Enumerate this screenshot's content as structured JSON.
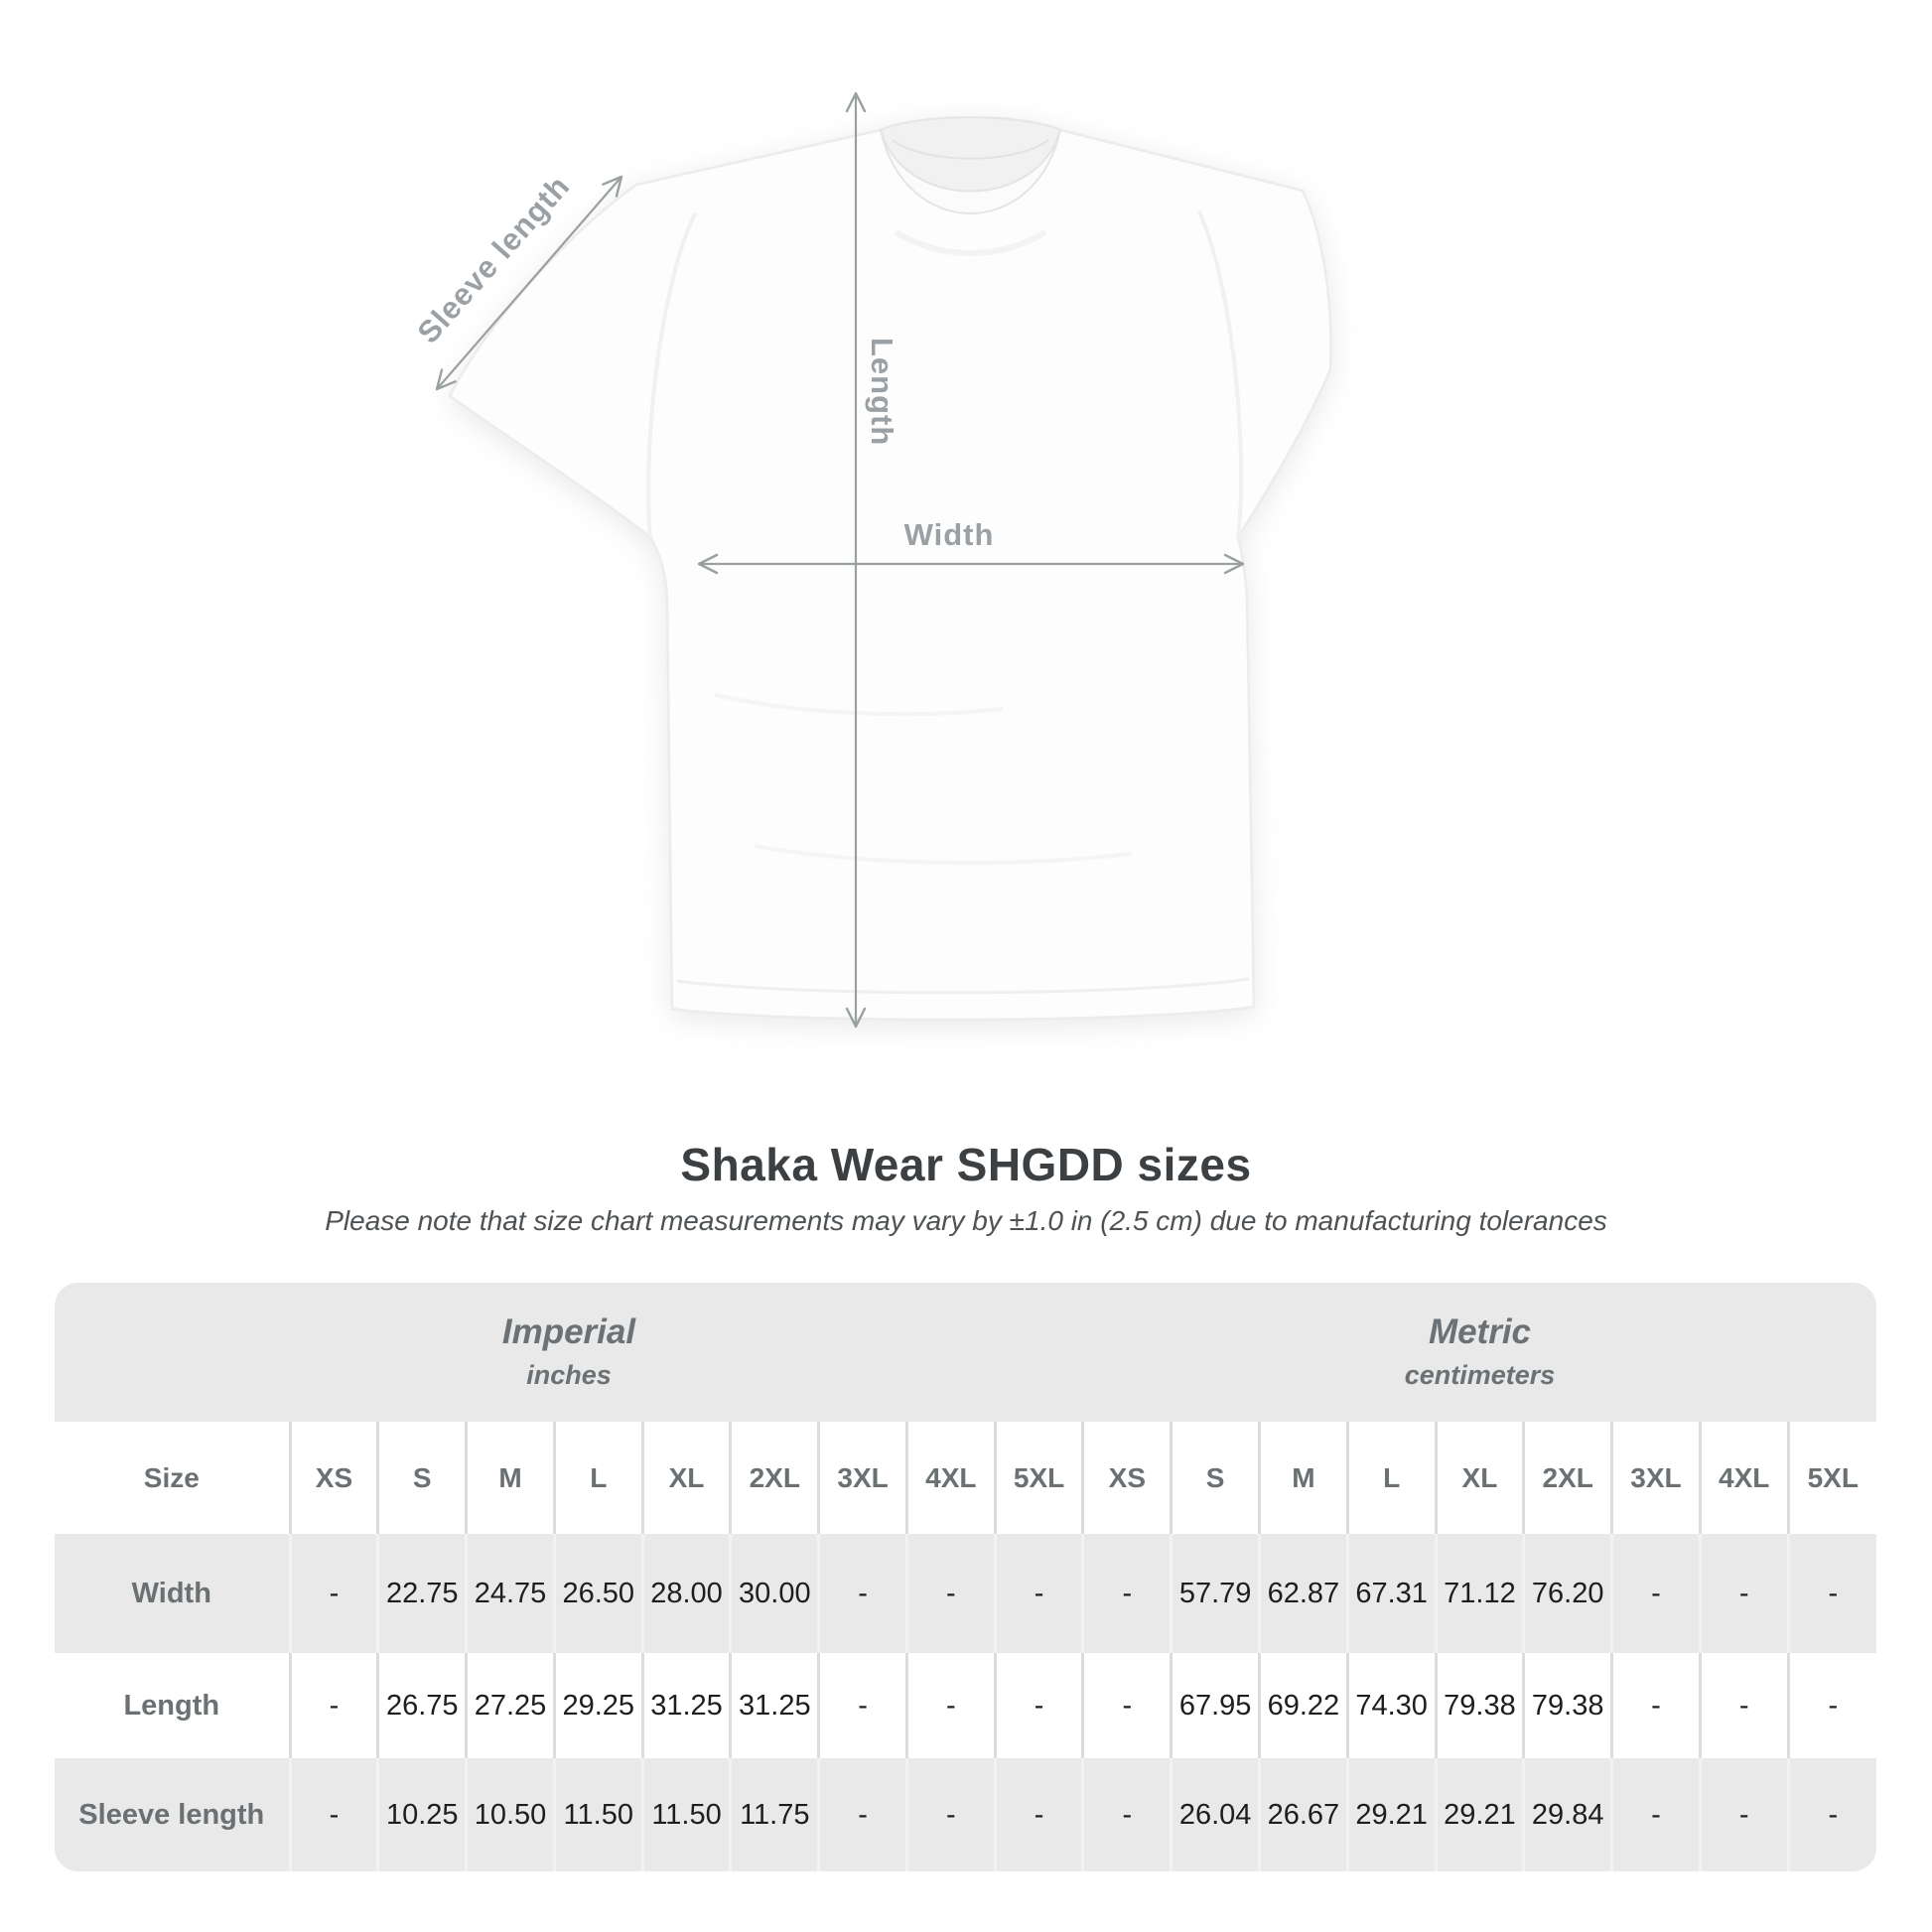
{
  "diagram": {
    "labels": {
      "sleeve_length": "Sleeve length",
      "length": "Length",
      "width": "Width"
    },
    "arrow_color": "#9aa0a2",
    "label_color": "#9aa0a4"
  },
  "header": {
    "title": "Shaka Wear SHGDD sizes",
    "subtitle": "Please note that size chart measurements may vary by ±1.0 in (2.5 cm) due to manufacturing tolerances"
  },
  "table": {
    "unit_groups": [
      {
        "name": "Imperial",
        "unit": "inches"
      },
      {
        "name": "Metric",
        "unit": "centimeters"
      }
    ],
    "size_header": {
      "label": "Size",
      "imperial": [
        "XS",
        "S",
        "M",
        "L",
        "XL",
        "2XL",
        "3XL",
        "4XL",
        "5XL"
      ],
      "metric": [
        "XS",
        "S",
        "M",
        "L",
        "XL",
        "2XL",
        "3XL",
        "4XL",
        "5XL"
      ]
    },
    "rows": [
      {
        "label": "Width",
        "imperial": [
          "-",
          "22.75",
          "24.75",
          "26.50",
          "28.00",
          "30.00",
          "-",
          "-",
          "-"
        ],
        "metric": [
          "-",
          "57.79",
          "62.87",
          "67.31",
          "71.12",
          "76.20",
          "-",
          "-",
          "-"
        ]
      },
      {
        "label": "Length",
        "imperial": [
          "-",
          "26.75",
          "27.25",
          "29.25",
          "31.25",
          "31.25",
          "-",
          "-",
          "-"
        ],
        "metric": [
          "-",
          "67.95",
          "69.22",
          "74.30",
          "79.38",
          "79.38",
          "-",
          "-",
          "-"
        ]
      },
      {
        "label": "Sleeve length",
        "imperial": [
          "-",
          "10.25",
          "10.50",
          "11.50",
          "11.50",
          "11.75",
          "-",
          "-",
          "-"
        ],
        "metric": [
          "-",
          "26.04",
          "26.67",
          "29.21",
          "29.21",
          "29.84",
          "-",
          "-",
          "-"
        ]
      }
    ]
  },
  "colors": {
    "title_text": "#3c4043",
    "subtitle_text": "#4e5254",
    "table_background": "#e9e9e9",
    "alt_row_background": "#ffffff",
    "header_text": "#6b7073",
    "value_text": "#1e1e1e"
  }
}
